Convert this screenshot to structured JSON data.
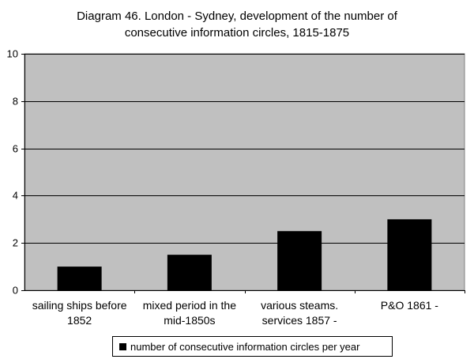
{
  "chart_title": {
    "line1": "Diagram 46. London - Sydney, development of the number of",
    "line2": "consecutive information circles, 1815-1875"
  },
  "colors": {
    "plot_bg": "#c0c0c0",
    "bar": "#000000",
    "grid": "#000000"
  },
  "chart_data": {
    "type": "bar",
    "title": "Diagram 46. London - Sydney, development of the number of consecutive information circles, 1815-1875",
    "categories": [
      [
        "sailing ships before",
        "1852"
      ],
      [
        "mixed period in the",
        "mid-1850s"
      ],
      [
        "various steams.",
        "services 1857 -"
      ],
      [
        "P&O 1861 -",
        ""
      ]
    ],
    "series": [
      {
        "name": "number of consecutive information circles per year",
        "values": [
          1,
          1.5,
          2.5,
          3
        ]
      }
    ],
    "ylim": [
      0,
      10
    ],
    "yticks": [
      "0",
      "2",
      "4",
      "6",
      "8",
      "10"
    ],
    "grid": true,
    "legend": "bottom"
  }
}
